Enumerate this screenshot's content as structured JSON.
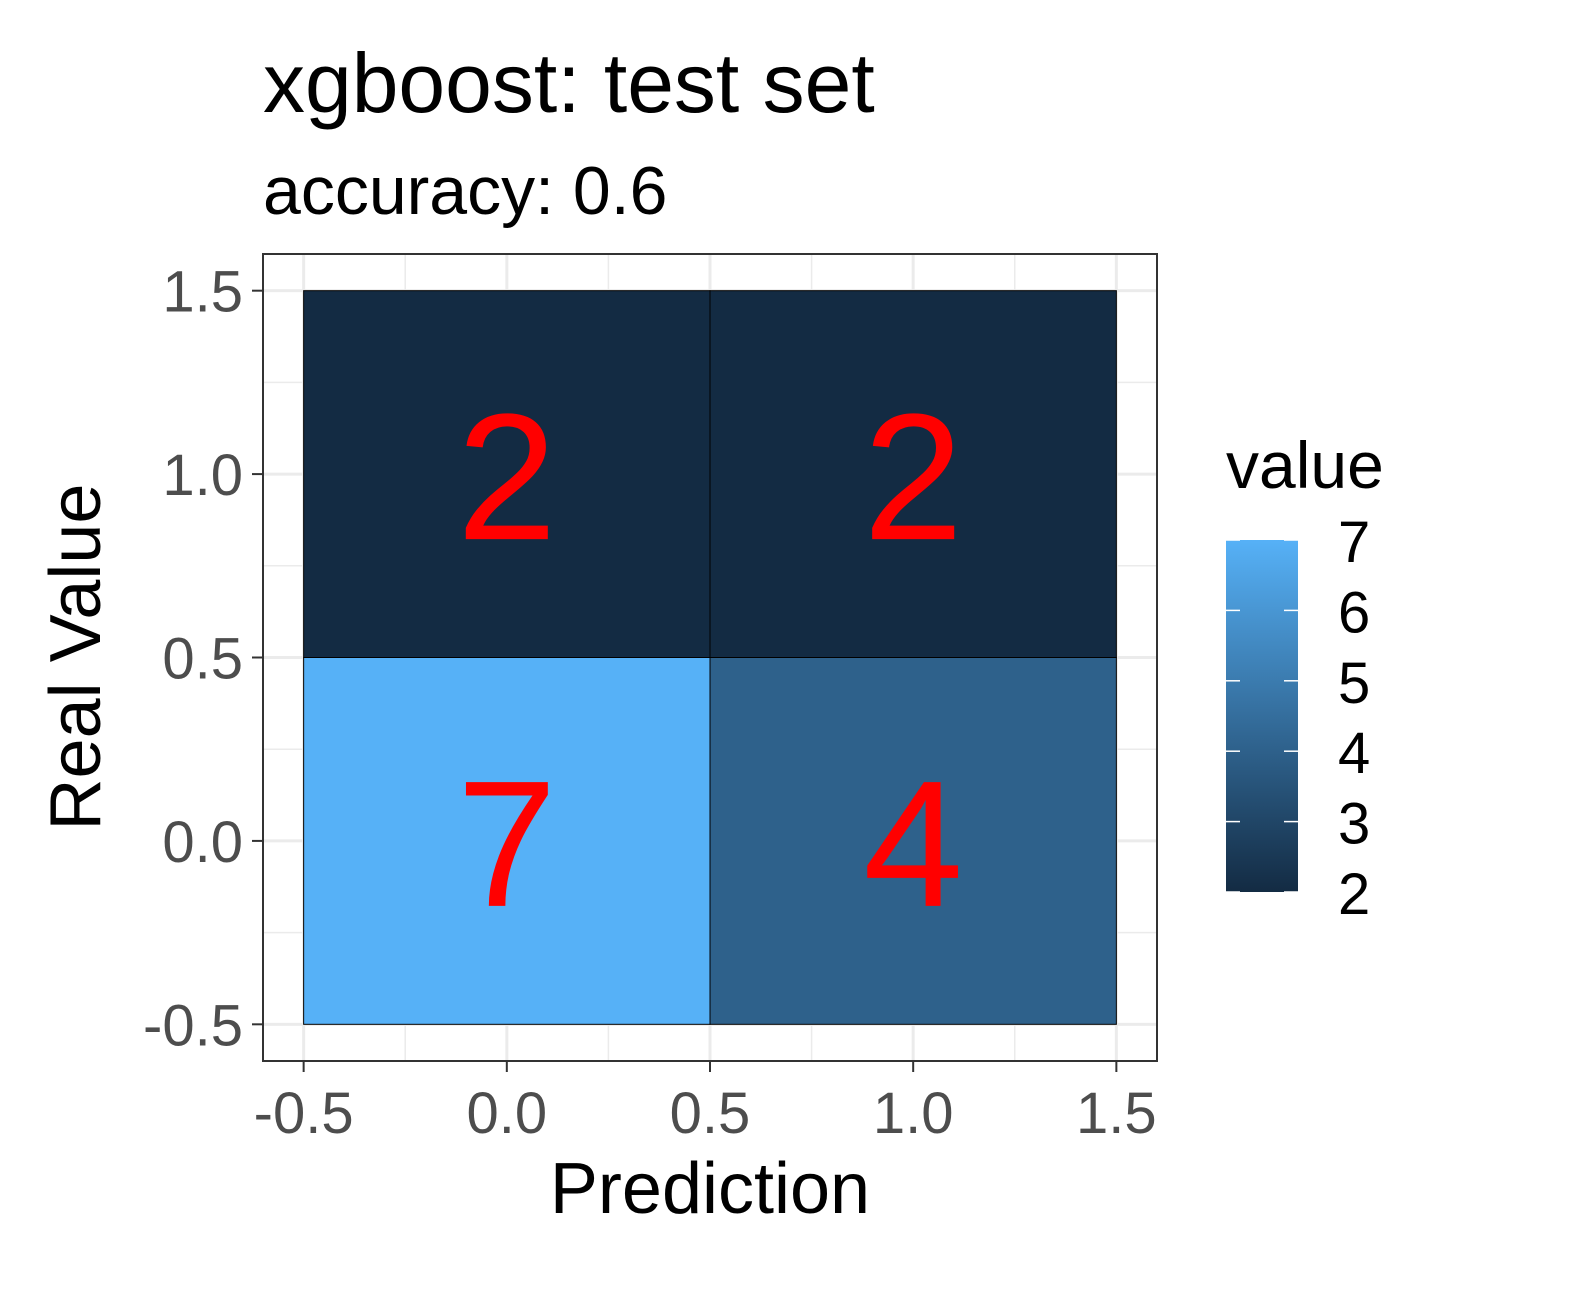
{
  "chart_data": {
    "type": "heatmap",
    "title": "xgboost: test set",
    "subtitle": "accuracy: 0.6",
    "xlabel": "Prediction",
    "ylabel": "Real Value",
    "xlim": [
      -0.6,
      1.6
    ],
    "ylim": [
      -0.6,
      1.6
    ],
    "x_ticks": [
      -0.5,
      0.0,
      0.5,
      1.0,
      1.5
    ],
    "y_ticks": [
      -0.5,
      0.0,
      0.5,
      1.0,
      1.5
    ],
    "x_tick_labels": [
      "-0.5",
      "0.0",
      "0.5",
      "1.0",
      "1.5"
    ],
    "y_tick_labels": [
      "-0.5",
      "0.0",
      "0.5",
      "1.0",
      "1.5"
    ],
    "cells": [
      {
        "x": 0,
        "y": 1,
        "value": 2,
        "label": "2"
      },
      {
        "x": 1,
        "y": 1,
        "value": 2,
        "label": "2"
      },
      {
        "x": 0,
        "y": 0,
        "value": 7,
        "label": "7"
      },
      {
        "x": 1,
        "y": 0,
        "value": 4,
        "label": "4"
      }
    ],
    "legend": {
      "title": "value",
      "min": 2,
      "max": 7,
      "breaks": [
        2,
        3,
        4,
        5,
        6,
        7
      ],
      "break_labels": [
        "2",
        "3",
        "4",
        "5",
        "6",
        "7"
      ],
      "low_color": "#132b43",
      "high_color": "#56b1f7",
      "placement": "right"
    },
    "cell_label_color": "#ff0000",
    "grid": true,
    "theme": "bw"
  }
}
